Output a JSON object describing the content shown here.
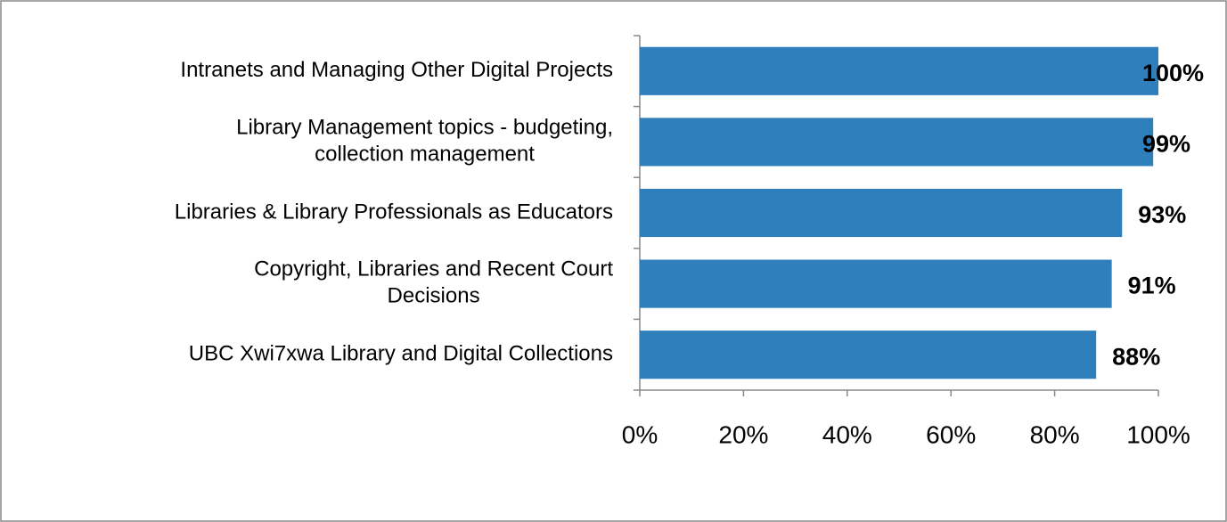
{
  "chart_data": {
    "type": "bar",
    "orientation": "horizontal",
    "categories": [
      "Intranets and Managing Other Digital Projects",
      "Library Management topics - budgeting,\ncollection management",
      "Libraries & Library Professionals as Educators",
      "Copyright, Libraries and Recent Court\nDecisions",
      "UBC Xwi7xwa Library and Digital Collections"
    ],
    "values": [
      100,
      99,
      93,
      91,
      88
    ],
    "value_labels": [
      "100%",
      "99%",
      "93%",
      "91%",
      "88%"
    ],
    "color": "#2e7fbc",
    "xlim": [
      0,
      100
    ],
    "xticks": [
      {
        "value": 0,
        "label": "0%"
      },
      {
        "value": 20,
        "label": "20%"
      },
      {
        "value": 40,
        "label": "40%"
      },
      {
        "value": 60,
        "label": "60%"
      },
      {
        "value": 80,
        "label": "80%"
      },
      {
        "value": 100,
        "label": "100%"
      }
    ],
    "grid": false
  }
}
